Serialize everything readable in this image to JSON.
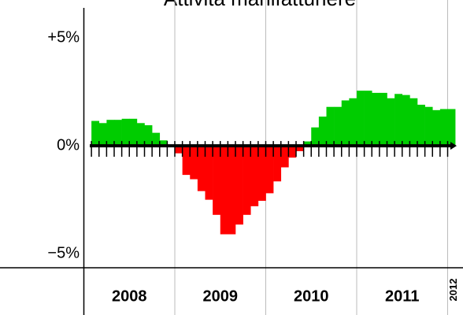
{
  "chart_data": {
    "type": "bar",
    "title": "Attività manifatturiere",
    "categories": [
      null,
      null,
      null,
      null,
      null,
      null,
      null,
      null,
      null,
      null,
      null,
      null,
      null,
      null,
      null,
      null,
      null,
      null,
      null,
      null,
      null,
      null,
      null,
      null,
      null,
      null,
      null,
      null,
      null,
      null,
      null,
      null,
      null,
      null,
      null,
      null,
      null,
      null,
      null,
      null,
      null,
      null,
      null,
      null,
      null,
      null,
      null,
      null,
      null
    ],
    "values": [
      null,
      1.15,
      1.05,
      1.2,
      1.2,
      1.25,
      1.25,
      1.05,
      0.95,
      0.6,
      0.25,
      0.05,
      -0.35,
      -1.35,
      -1.55,
      -2.1,
      -2.5,
      -3.2,
      -4.1,
      -4.1,
      -3.65,
      -3.2,
      -2.8,
      -2.55,
      -2.2,
      -1.65,
      -1.0,
      -0.55,
      -0.25,
      0.2,
      0.85,
      1.35,
      1.8,
      1.8,
      2.1,
      2.2,
      2.55,
      2.55,
      2.45,
      2.45,
      2.2,
      2.4,
      2.35,
      2.2,
      1.9,
      1.8,
      1.65,
      1.7,
      1.7
    ],
    "year_labels": [
      "2008",
      "2009",
      "2010",
      "2011",
      "2012"
    ],
    "positive_color": "#00cc00",
    "negative_color": "#ff0000",
    "ylim": [
      -5.65,
      6.75
    ],
    "yticks": [
      {
        "value": 5,
        "label": "+5%"
      },
      {
        "value": 0,
        "label": "0%"
      },
      {
        "value": -5,
        "label": "−5%"
      }
    ]
  }
}
